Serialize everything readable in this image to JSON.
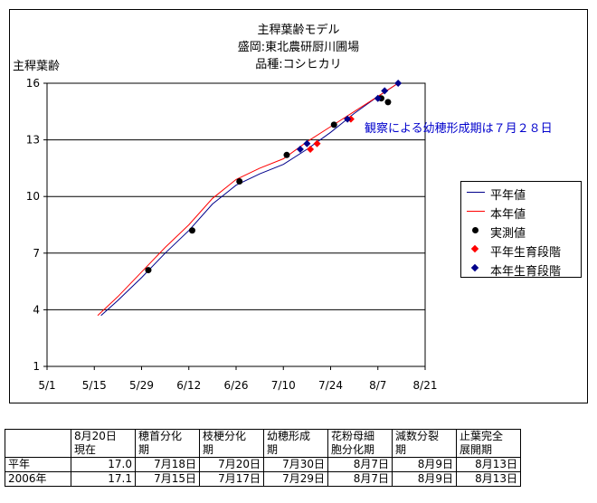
{
  "title": {
    "line1": "主稈葉齢モデル",
    "line2": "盛岡:東北農研厨川圃場",
    "line3": "品種:コシヒカリ"
  },
  "ylabel": "主稈葉齢",
  "annotation": "観察による幼穂形成期は７月２８日",
  "legend": {
    "normal_year": "平年値",
    "this_year": "本年値",
    "observed": "実測値",
    "normal_stage": "平年生育段階",
    "this_stage": "本年生育段階"
  },
  "colors": {
    "normal_year": "#00008b",
    "this_year": "#ff0000",
    "observed": "#000000",
    "normal_stage": "#ff0000",
    "this_stage": "#00008b"
  },
  "chart_data": {
    "type": "line",
    "title": "主稈葉齢モデル 盛岡:東北農研厨川圃場 品種:コシヒカリ",
    "ylabel": "主稈葉齢",
    "xlabel": "",
    "x_ticks": [
      "5/1",
      "5/15",
      "5/29",
      "6/12",
      "6/26",
      "7/10",
      "7/24",
      "8/7",
      "8/21"
    ],
    "y_ticks": [
      1,
      4,
      7,
      10,
      13,
      16
    ],
    "xlim": [
      "5/1",
      "8/21"
    ],
    "ylim": [
      1,
      16
    ],
    "grid": "horizontal",
    "legend_position": "right",
    "series": [
      {
        "name": "平年値",
        "type": "line",
        "points": [
          [
            "5/17",
            3.7
          ],
          [
            "5/22",
            4.5
          ],
          [
            "5/29",
            5.7
          ],
          [
            "6/5",
            7.0
          ],
          [
            "6/12",
            8.2
          ],
          [
            "6/19",
            9.6
          ],
          [
            "6/26",
            10.6
          ],
          [
            "7/3",
            11.2
          ],
          [
            "7/10",
            11.7
          ],
          [
            "7/17",
            12.5
          ],
          [
            "7/24",
            13.4
          ],
          [
            "7/31",
            14.4
          ],
          [
            "8/7",
            15.3
          ],
          [
            "8/13",
            16.0
          ]
        ]
      },
      {
        "name": "本年値",
        "type": "line",
        "points": [
          [
            "5/16",
            3.7
          ],
          [
            "5/22",
            4.7
          ],
          [
            "5/29",
            6.0
          ],
          [
            "6/5",
            7.3
          ],
          [
            "6/12",
            8.5
          ],
          [
            "6/19",
            9.9
          ],
          [
            "6/26",
            10.9
          ],
          [
            "7/3",
            11.5
          ],
          [
            "7/10",
            12.0
          ],
          [
            "7/17",
            12.9
          ],
          [
            "7/24",
            13.7
          ],
          [
            "7/31",
            14.5
          ],
          [
            "8/7",
            15.3
          ],
          [
            "8/13",
            16.0
          ]
        ]
      },
      {
        "name": "実測値",
        "type": "scatter",
        "points": [
          [
            "5/31",
            6.1
          ],
          [
            "6/13",
            8.2
          ],
          [
            "6/27",
            10.8
          ],
          [
            "7/11",
            12.2
          ],
          [
            "7/25",
            13.8
          ],
          [
            "8/8",
            15.2
          ],
          [
            "8/10",
            15.0
          ]
        ]
      },
      {
        "name": "平年生育段階",
        "type": "scatter",
        "points": [
          [
            "7/18",
            12.5
          ],
          [
            "7/20",
            12.8
          ],
          [
            "7/30",
            14.1
          ]
        ]
      },
      {
        "name": "本年生育段階",
        "type": "scatter",
        "points": [
          [
            "7/15",
            12.5
          ],
          [
            "7/17",
            12.8
          ],
          [
            "7/29",
            14.1
          ],
          [
            "8/7",
            15.2
          ],
          [
            "8/9",
            15.6
          ],
          [
            "8/13",
            16.0
          ]
        ]
      }
    ]
  },
  "table": {
    "headers": [
      [
        "",
        ""
      ],
      [
        "8月20日",
        "現在"
      ],
      [
        "穂首分化",
        "期"
      ],
      [
        "枝梗分化",
        "期"
      ],
      [
        "幼穂形成",
        "期"
      ],
      [
        "花粉母細",
        "胞分化期"
      ],
      [
        "減数分裂",
        "期"
      ],
      [
        "止葉完全",
        "展開期"
      ]
    ],
    "rows": [
      [
        "平年",
        "17.0",
        "7月18日",
        "7月20日",
        "7月30日",
        "8月7日",
        "8月9日",
        "8月13日"
      ],
      [
        "2006年",
        "17.1",
        "7月15日",
        "7月17日",
        "7月29日",
        "8月7日",
        "8月9日",
        "8月13日"
      ]
    ]
  }
}
